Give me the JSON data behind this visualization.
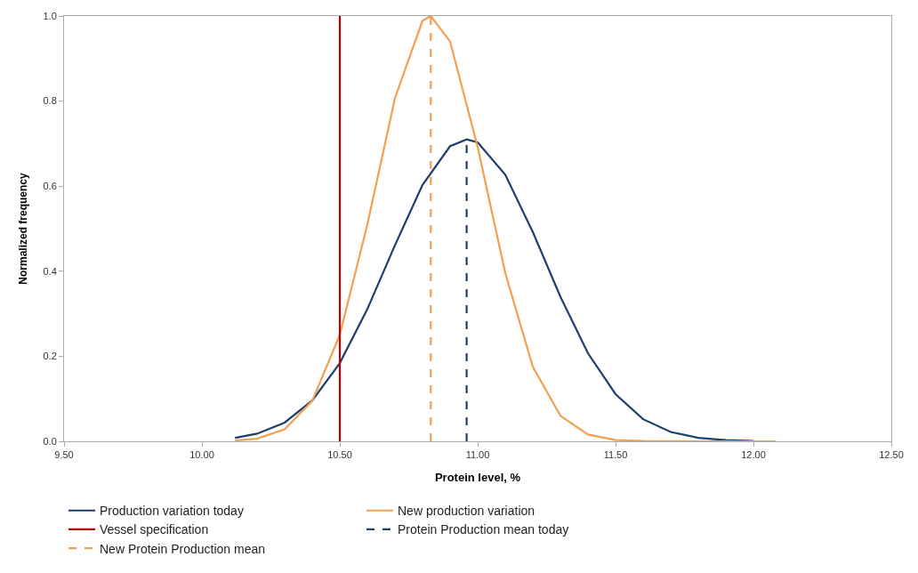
{
  "chart_data": {
    "type": "line",
    "xlabel": "Protein level, %",
    "ylabel": "Normalized frequency",
    "xlim": [
      9.5,
      12.5
    ],
    "xticks": [
      {
        "value": 9.5,
        "label": "9.50"
      },
      {
        "value": 10,
        "label": "10.00"
      },
      {
        "value": 10.5,
        "label": "10.50"
      },
      {
        "value": 11,
        "label": "11.00"
      },
      {
        "value": 11.5,
        "label": "11.50"
      },
      {
        "value": 12,
        "label": "12.00"
      },
      {
        "value": 12.5,
        "label": "12.50"
      }
    ],
    "ylim": [
      0,
      1
    ],
    "yticks": [
      {
        "value": 0,
        "label": "0.0"
      },
      {
        "value": 0.2,
        "label": "0.2"
      },
      {
        "value": 0.4,
        "label": "0.4"
      },
      {
        "value": 0.6,
        "label": "0.6"
      },
      {
        "value": 0.8,
        "label": "0.8"
      },
      {
        "value": 1,
        "label": "1.0"
      }
    ],
    "grid": false,
    "legend": "bottom",
    "marker": "none",
    "series": [
      {
        "name": "Production variation today",
        "color": "#1f3f6e",
        "line_style": "solid",
        "x": [
          10.12,
          10.2,
          10.3,
          10.4,
          10.5,
          10.6,
          10.7,
          10.8,
          10.9,
          10.96,
          11.0,
          11.1,
          11.2,
          11.3,
          11.4,
          11.5,
          11.6,
          11.7,
          11.8,
          11.9,
          12.0
        ],
        "values": [
          0.008,
          0.018,
          0.044,
          0.096,
          0.184,
          0.311,
          0.461,
          0.603,
          0.694,
          0.71,
          0.703,
          0.627,
          0.492,
          0.34,
          0.207,
          0.111,
          0.052,
          0.022,
          0.008,
          0.003,
          0.001
        ]
      },
      {
        "name": "New production variation",
        "color": "#f0a050",
        "line_style": "solid",
        "x": [
          10.12,
          10.2,
          10.3,
          10.4,
          10.5,
          10.6,
          10.7,
          10.8,
          10.83,
          10.9,
          11.0,
          11.1,
          11.2,
          11.3,
          11.4,
          11.5,
          11.6,
          11.8,
          12.08
        ],
        "values": [
          0.002,
          0.006,
          0.028,
          0.095,
          0.25,
          0.51,
          0.807,
          0.989,
          1.0,
          0.94,
          0.692,
          0.396,
          0.175,
          0.06,
          0.016,
          0.003,
          0.001,
          0.0,
          0.0
        ]
      },
      {
        "name": "Vessel specification",
        "color": "#c00000",
        "line_style": "solid",
        "x": [
          10.5,
          10.5
        ],
        "values": [
          0,
          1
        ]
      },
      {
        "name": "Protein Production mean today",
        "color": "#1f3f6e",
        "line_style": "dashed",
        "x": [
          10.96,
          10.96
        ],
        "values": [
          0,
          0.71
        ]
      },
      {
        "name": "New Protein Production mean",
        "color": "#f0a050",
        "line_style": "dashed",
        "x": [
          10.83,
          10.83
        ],
        "values": [
          0,
          1.0
        ]
      }
    ]
  }
}
